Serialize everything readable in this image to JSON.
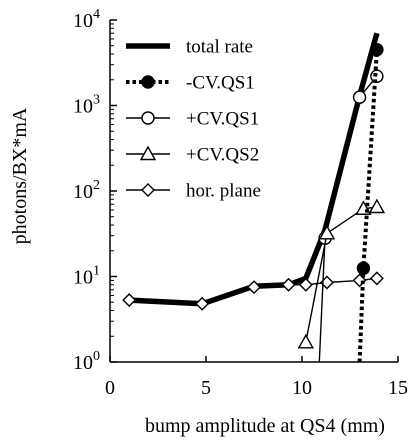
{
  "chart_data": {
    "type": "line",
    "xlabel": "bump amplitude at QS4 (mm)",
    "ylabel": "photons/BX*mA",
    "xlim": [
      0,
      15
    ],
    "ylim": [
      1,
      10000
    ],
    "yscale": "log",
    "x_ticks": [
      0,
      5,
      10,
      15
    ],
    "x_tick_labels": [
      "0",
      "5",
      "10",
      "15"
    ],
    "y_ticks": [
      1,
      10,
      100,
      1000,
      10000
    ],
    "y_tick_labels": [
      {
        "base": "10",
        "exp": "0"
      },
      {
        "base": "10",
        "exp": "1"
      },
      {
        "base": "10",
        "exp": "2"
      },
      {
        "base": "10",
        "exp": "3"
      },
      {
        "base": "10",
        "exp": "4"
      }
    ],
    "grid": false,
    "legend_position": "top-left",
    "series": [
      {
        "name": "total rate",
        "style": "thick-line",
        "marker": "none",
        "color": "#000000",
        "x": [
          1.0,
          4.8,
          7.5,
          9.3,
          10.2,
          11.2,
          13.0,
          13.9
        ],
        "y": [
          5.3,
          4.8,
          7.7,
          8.0,
          9.5,
          35,
          1300,
          7000
        ]
      },
      {
        "name": "-CV.QS1",
        "style": "dotted-line",
        "marker": "filled-circle",
        "color": "#000000",
        "x": [
          13.0,
          13.2,
          13.9
        ],
        "y": [
          1.0,
          12.5,
          4500
        ]
      },
      {
        "name": "+CV.QS1",
        "style": "thin-line",
        "marker": "open-circle",
        "color": "#000000",
        "x": [
          10.9,
          11.2,
          13.0,
          13.9
        ],
        "y": [
          1.0,
          28,
          1250,
          2200
        ]
      },
      {
        "name": "+CV.QS2",
        "style": "thin-line",
        "marker": "open-triangle",
        "color": "#000000",
        "x": [
          10.2,
          11.3,
          13.2,
          13.9
        ],
        "y": [
          1.7,
          32,
          62,
          65
        ]
      },
      {
        "name": "hor. plane",
        "style": "thin-line",
        "marker": "open-diamond",
        "color": "#000000",
        "x": [
          1.0,
          4.8,
          7.5,
          9.3,
          10.2,
          11.3,
          13.0,
          13.9
        ],
        "y": [
          5.3,
          4.8,
          7.5,
          8.0,
          8.0,
          8.5,
          9.0,
          9.5
        ]
      }
    ]
  }
}
